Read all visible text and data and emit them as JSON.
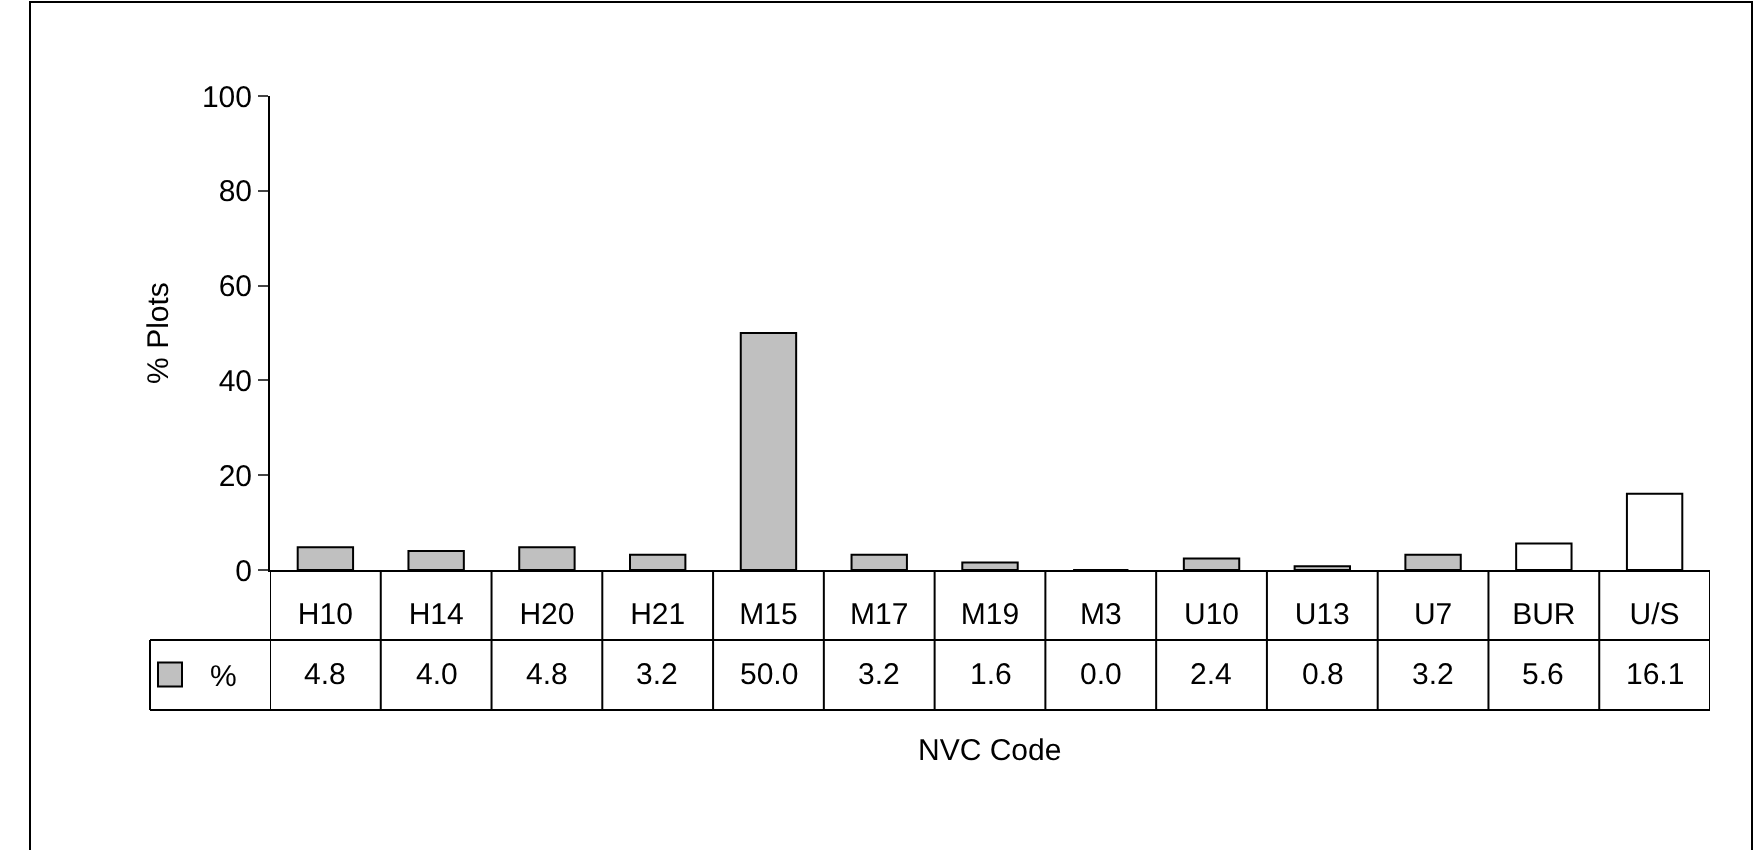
{
  "chart_data": {
    "type": "bar",
    "xlabel": "NVC Code",
    "ylabel": "% Plots",
    "categories": [
      "H10",
      "H14",
      "H20",
      "H21",
      "M15",
      "M17",
      "M19",
      "M3",
      "U10",
      "U13",
      "U7",
      "BUR",
      "U/S"
    ],
    "series": [
      {
        "name": "%",
        "colors": [
          "#c0c0c0",
          "#c0c0c0",
          "#c0c0c0",
          "#c0c0c0",
          "#c0c0c0",
          "#c0c0c0",
          "#c0c0c0",
          "#c0c0c0",
          "#c0c0c0",
          "#c0c0c0",
          "#c0c0c0",
          "#ffffff",
          "#ffffff"
        ],
        "values": [
          4.8,
          4.0,
          4.8,
          3.2,
          50.0,
          3.2,
          1.6,
          0.0,
          2.4,
          0.8,
          3.2,
          5.6,
          16.1
        ],
        "value_labels": [
          "4.8",
          "4.0",
          "4.8",
          "3.2",
          "50.0",
          "3.2",
          "1.6",
          "0.0",
          "2.4",
          "0.8",
          "3.2",
          "5.6",
          "16.1"
        ]
      }
    ],
    "ylim": [
      0,
      100
    ],
    "yticks": [
      0,
      20,
      40,
      60,
      80,
      100
    ],
    "legend": "bottom left"
  }
}
